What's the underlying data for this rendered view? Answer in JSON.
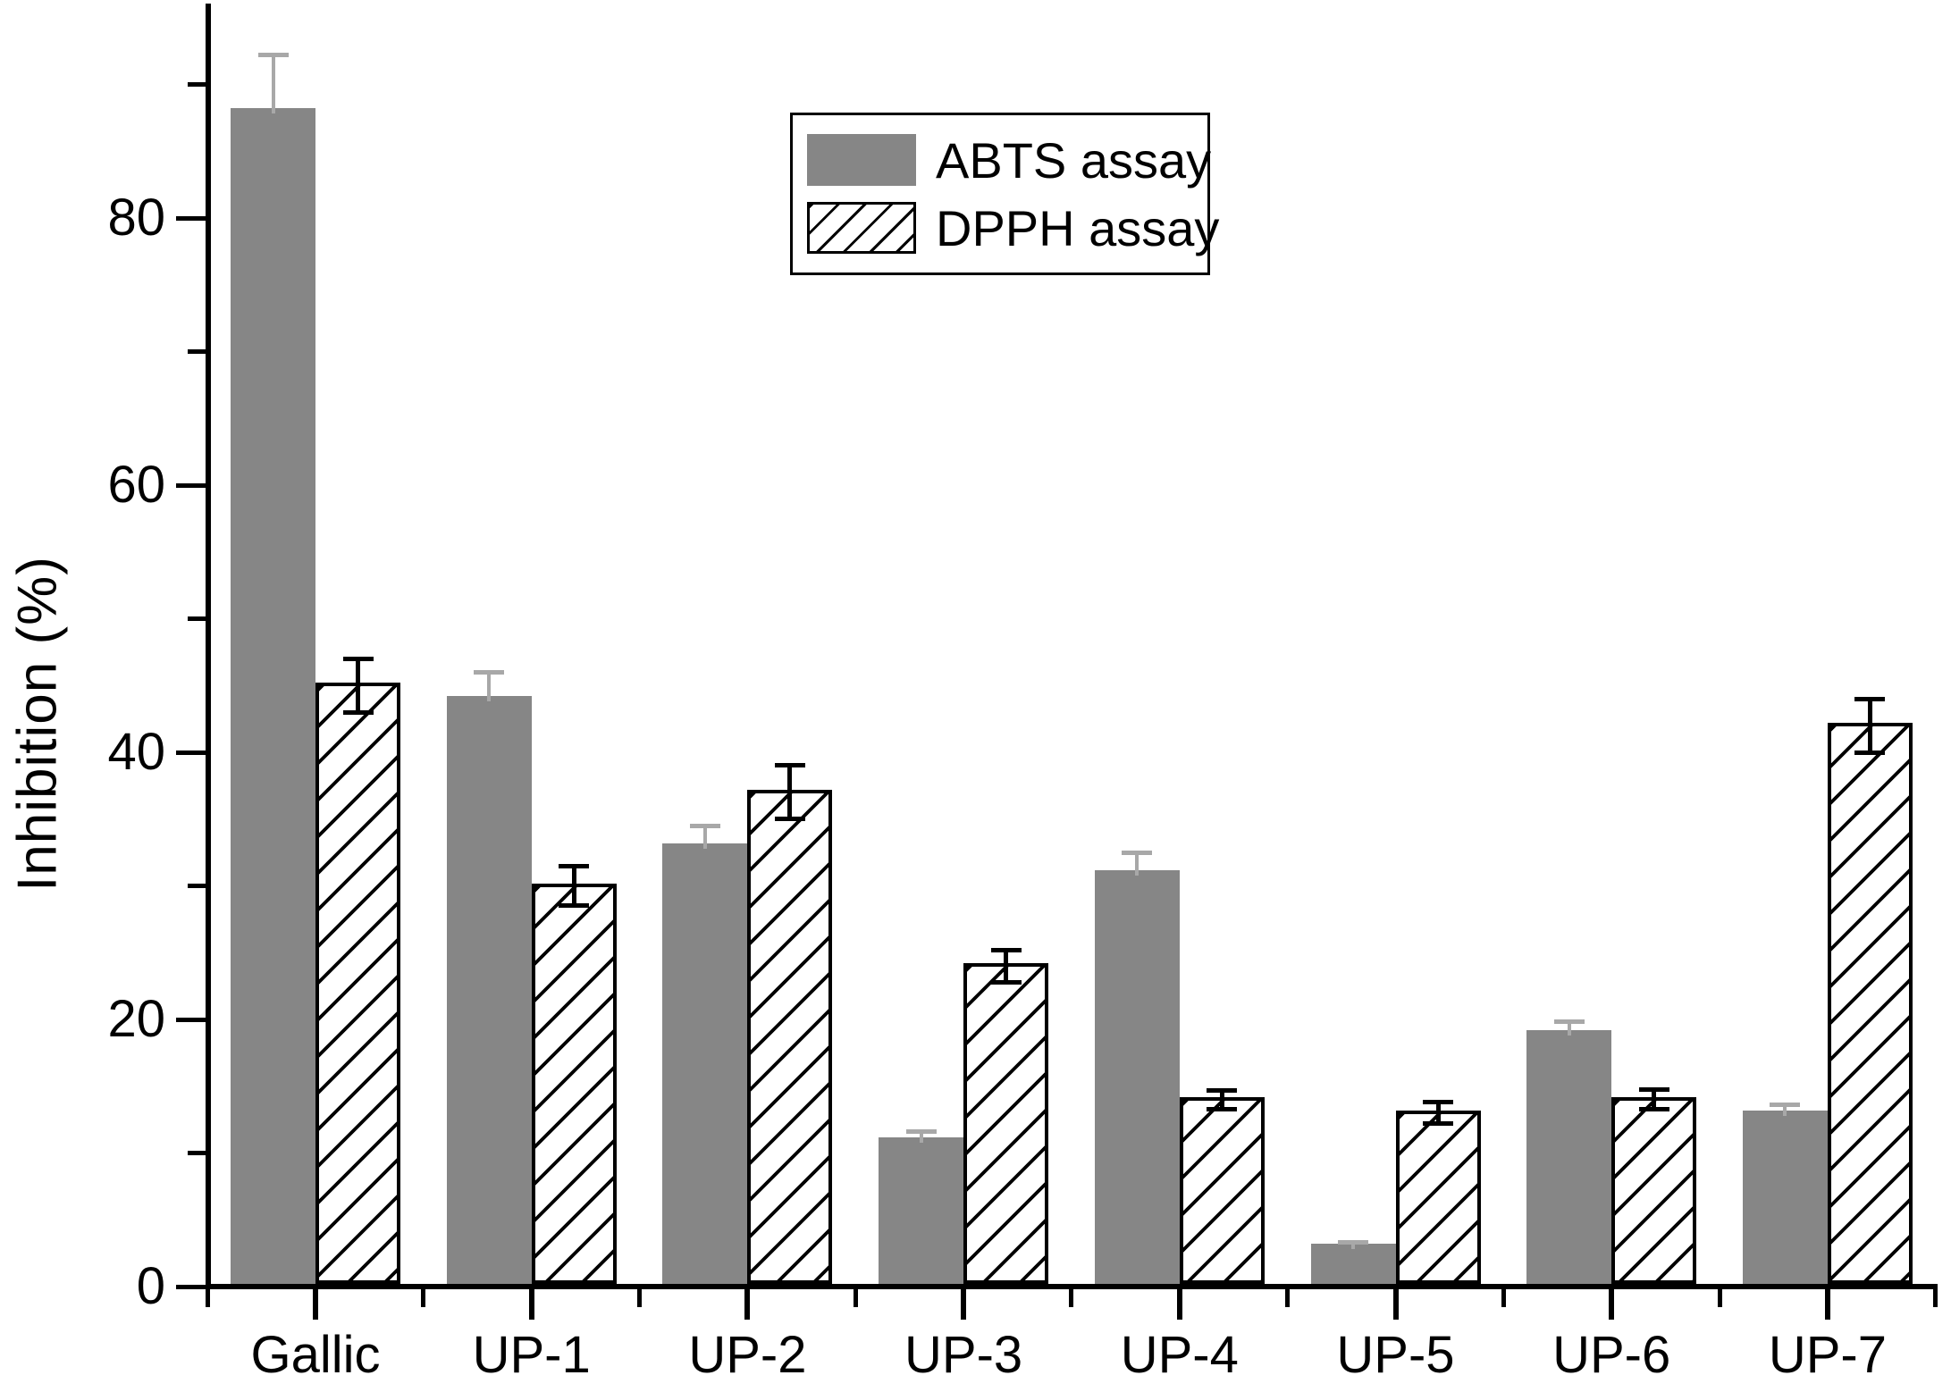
{
  "colors": {
    "bar_fill": "#868686",
    "hatch_line": "#000000",
    "axis": "#000000",
    "abts_error_bar": "#a8a8a8",
    "dpph_error_bar": "#000000",
    "background": "#ffffff"
  },
  "chart_data": {
    "type": "bar",
    "title": "",
    "xlabel": "",
    "ylabel": "Inhibition (%)",
    "categories": [
      "Gallic",
      "UP-1",
      "UP-2",
      "UP-3",
      "UP-4",
      "UP-5",
      "UP-6",
      "UP-7"
    ],
    "series": [
      {
        "name": "ABTS assay",
        "style": "solid-gray",
        "values": [
          88,
          44,
          33,
          11,
          31,
          3,
          19,
          13
        ],
        "errors": [
          4.2,
          2,
          1.5,
          0.6,
          1.5,
          0.3,
          0.85,
          0.6
        ]
      },
      {
        "name": "DPPH assay",
        "style": "hatched",
        "values": [
          45,
          30,
          37,
          24,
          14,
          13,
          14,
          42
        ],
        "errors": [
          2,
          1.5,
          2,
          1.2,
          0.7,
          0.8,
          0.75,
          2
        ]
      }
    ],
    "ylim": [
      0,
      96
    ],
    "y_major_ticks": [
      0,
      20,
      40,
      60,
      80
    ],
    "y_minor_ticks": [
      10,
      30,
      50,
      70,
      90
    ],
    "grid": false,
    "legend_position": "top-center",
    "error_bars": true
  }
}
